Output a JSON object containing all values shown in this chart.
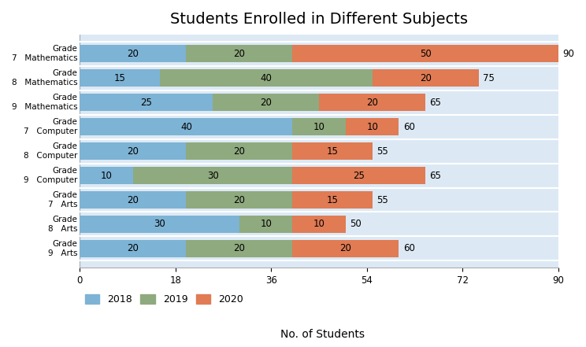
{
  "title": "Students Enrolled in Different Subjects",
  "xlabel": "No. of Students",
  "xlim": [
    0,
    90
  ],
  "xticks": [
    0,
    18,
    36,
    54,
    72,
    90
  ],
  "rows": [
    {
      "subject": "Mathematics",
      "grade": "7",
      "v18": 20,
      "v19": 20,
      "v20": 50,
      "total": 90
    },
    {
      "subject": "Mathematics",
      "grade": "8",
      "v18": 15,
      "v19": 40,
      "v20": 20,
      "total": 75
    },
    {
      "subject": "Mathematics",
      "grade": "9",
      "v18": 25,
      "v19": 20,
      "v20": 20,
      "total": 65
    },
    {
      "subject": "Computer",
      "grade": "7",
      "v18": 40,
      "v19": 10,
      "v20": 10,
      "total": 60
    },
    {
      "subject": "Computer",
      "grade": "8",
      "v18": 20,
      "v19": 20,
      "v20": 15,
      "total": 55
    },
    {
      "subject": "Computer",
      "grade": "9",
      "v18": 10,
      "v19": 30,
      "v20": 25,
      "total": 65
    },
    {
      "subject": "Arts",
      "grade": "7",
      "v18": 20,
      "v19": 20,
      "v20": 15,
      "total": 55
    },
    {
      "subject": "Arts",
      "grade": "8",
      "v18": 30,
      "v19": 10,
      "v20": 10,
      "total": 50
    },
    {
      "subject": "Arts",
      "grade": "9",
      "v18": 20,
      "v19": 20,
      "v20": 20,
      "total": 60
    }
  ],
  "color_2018": "#7db3d4",
  "color_2019": "#8faa7e",
  "color_2020": "#e07b54",
  "legend_labels": [
    "2018",
    "2019",
    "2020"
  ],
  "fig_bg": "#ffffff",
  "plot_bg": "#dce9f5",
  "separator_color": "#ffffff",
  "title_fontsize": 14,
  "label_fontsize": 8.5,
  "ytick_fontsize": 7.5
}
